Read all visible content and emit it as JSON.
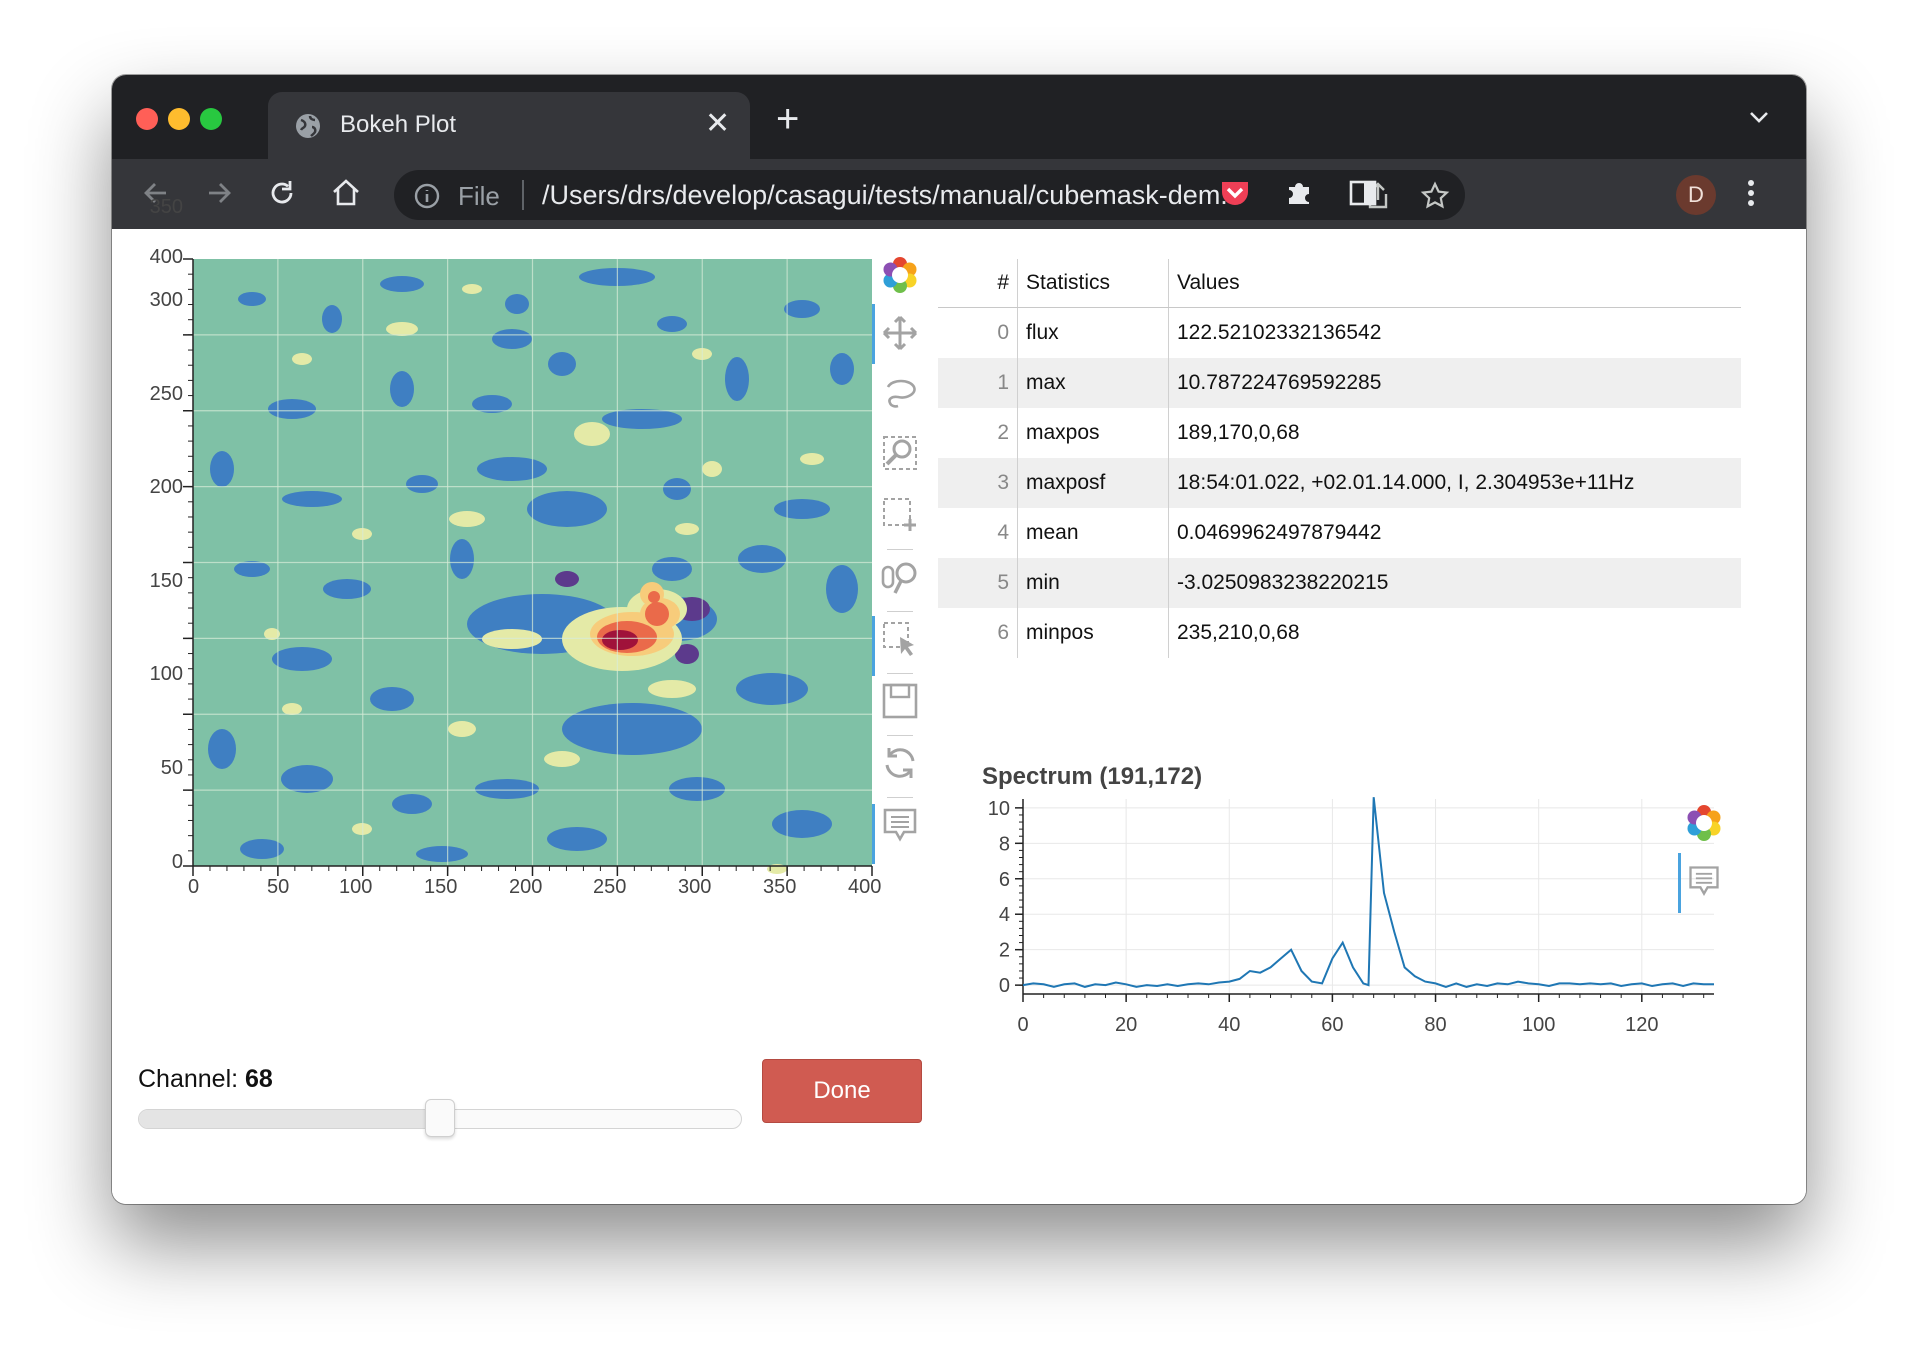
{
  "browser": {
    "tab_title": "Bokeh Plot",
    "tab_close": "✕",
    "new_tab": "+",
    "omnibox": {
      "file_label": "File",
      "url": "/Users/drs/develop/casagui/tests/manual/cubemask-dem..."
    },
    "profile_initial": "D"
  },
  "image_plot": {
    "x_ticks": [
      "0",
      "50",
      "100",
      "150",
      "200",
      "250",
      "300",
      "350",
      "400"
    ],
    "y_ticks": [
      "0",
      "50",
      "100",
      "150",
      "200",
      "250",
      "300",
      "350",
      "400"
    ],
    "toolbar": [
      "bokeh-logo-icon",
      "pan-icon",
      "lasso-select-icon",
      "zoom-icon",
      "box-select-icon",
      "wheel-zoom-icon",
      "tap-select-icon",
      "save-icon",
      "reset-icon",
      "hover-icon"
    ]
  },
  "stats_table": {
    "headers": {
      "index": "#",
      "statistics": "Statistics",
      "values": "Values"
    },
    "rows": [
      {
        "index": "0",
        "stat": "flux",
        "value": "122.52102332136542"
      },
      {
        "index": "1",
        "stat": "max",
        "value": "10.787224769592285"
      },
      {
        "index": "2",
        "stat": "maxpos",
        "value": "189,170,0,68"
      },
      {
        "index": "3",
        "stat": "maxposf",
        "value": "18:54:01.022, +02.01.14.000, I, 2.304953e+11Hz"
      },
      {
        "index": "4",
        "stat": "mean",
        "value": "0.0469962497879442"
      },
      {
        "index": "5",
        "stat": "min",
        "value": "-3.0250983238220215"
      },
      {
        "index": "6",
        "stat": "minpos",
        "value": "235,210,0,68"
      }
    ]
  },
  "spectrum": {
    "title": "Spectrum (191,172)",
    "x_ticks": [
      "0",
      "20",
      "40",
      "60",
      "80",
      "100",
      "120"
    ],
    "y_ticks": [
      "0",
      "2",
      "4",
      "6",
      "8",
      "10"
    ]
  },
  "controls": {
    "channel_label": "Channel: ",
    "channel_value": "68",
    "channel_fraction": 0.5,
    "done_label": "Done"
  },
  "colors": {
    "accent": "#d05b51",
    "line": "#1f77b4",
    "background_field": "#7fc1a6"
  },
  "chart_data": {
    "type": "line",
    "title": "Spectrum (191,172)",
    "xlabel": "",
    "ylabel": "",
    "xlim": [
      0,
      134
    ],
    "ylim": [
      -0.5,
      10.5
    ],
    "grid": true,
    "x": [
      0,
      2,
      4,
      6,
      8,
      10,
      12,
      14,
      16,
      18,
      20,
      22,
      24,
      26,
      28,
      30,
      32,
      34,
      36,
      38,
      40,
      42,
      44,
      46,
      48,
      50,
      52,
      54,
      56,
      58,
      60,
      62,
      64,
      66,
      67,
      68,
      70,
      72,
      74,
      76,
      78,
      80,
      82,
      84,
      86,
      88,
      90,
      92,
      94,
      96,
      98,
      100,
      102,
      104,
      106,
      108,
      110,
      112,
      114,
      116,
      118,
      120,
      122,
      124,
      126,
      128,
      130,
      132,
      134
    ],
    "values": [
      0,
      0.1,
      0.05,
      -0.1,
      0.05,
      0.1,
      -0.1,
      0.05,
      0,
      0.15,
      0.05,
      -0.1,
      0,
      -0.05,
      0.05,
      -0.05,
      0.05,
      0.1,
      0.05,
      0.15,
      0.2,
      0.35,
      0.8,
      0.7,
      1.0,
      1.5,
      2.0,
      0.8,
      0.2,
      0.1,
      1.5,
      2.4,
      1.0,
      0.1,
      0.0,
      10.6,
      5.2,
      3.0,
      1.0,
      0.5,
      0.2,
      0.1,
      -0.1,
      0.1,
      -0.1,
      0.05,
      -0.05,
      0.1,
      0.05,
      0.2,
      0.1,
      0.05,
      -0.05,
      0.1,
      0.1,
      0.05,
      0.1,
      0.05,
      0.1,
      -0.05,
      0.05,
      0.1,
      -0.05,
      0.05,
      0.1,
      -0.05,
      0.1,
      0.05,
      0.05
    ]
  }
}
